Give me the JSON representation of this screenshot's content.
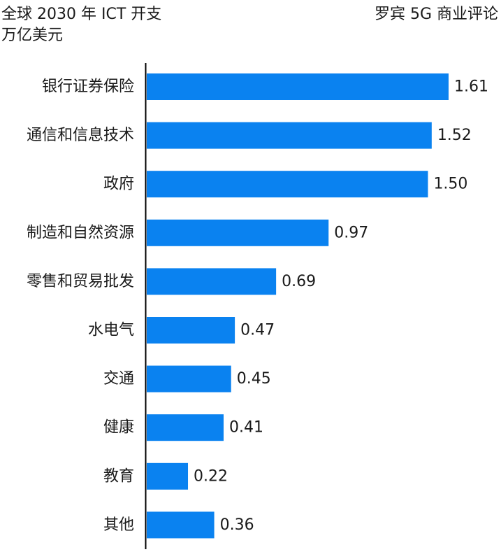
{
  "chart_data": {
    "type": "bar",
    "orientation": "horizontal",
    "title": "全球 2030 年 ICT 开支",
    "subtitle": "万亿美元",
    "source": "罗宾 5G 商业评论",
    "categories": [
      "银行证券保险",
      "通信和信息技术",
      "政府",
      "制造和自然资源",
      "零售和贸易批发",
      "水电气",
      "交通",
      "健康",
      "教育",
      "其他"
    ],
    "values": [
      1.61,
      1.52,
      1.5,
      0.97,
      0.69,
      0.47,
      0.45,
      0.41,
      0.22,
      0.36
    ],
    "value_labels": [
      "1.61",
      "1.52",
      "1.50",
      "0.97",
      "0.69",
      "0.47",
      "0.45",
      "0.41",
      "0.22",
      "0.36"
    ],
    "bar_color": "#0a82f0",
    "axis_color": "#000000",
    "grid": false,
    "legend": "none"
  }
}
